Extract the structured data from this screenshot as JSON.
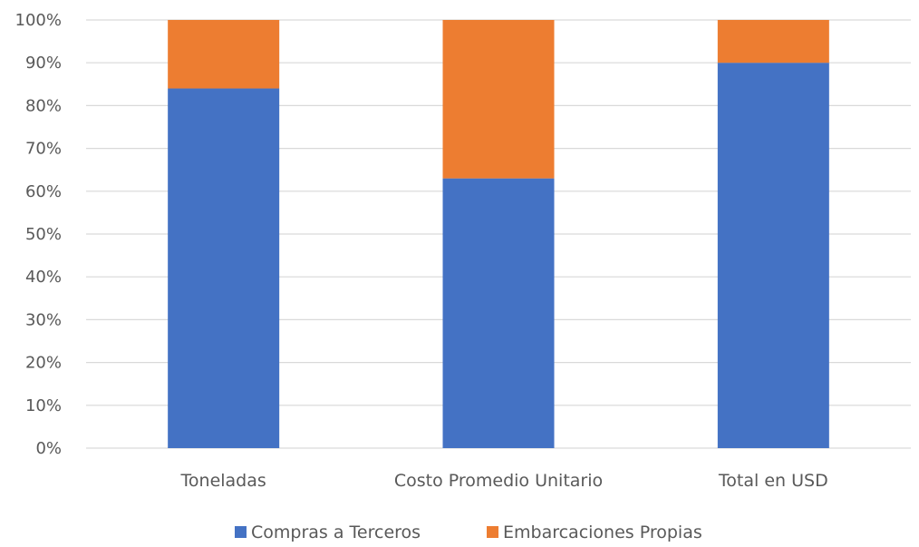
{
  "chart_data": {
    "type": "bar",
    "stacked": "percent",
    "categories": [
      "Toneladas",
      "Costo Promedio Unitario",
      "Total en USD"
    ],
    "series": [
      {
        "name": "Compras a Terceros",
        "color": "#4472C4",
        "values": [
          84,
          63,
          90
        ]
      },
      {
        "name": "Embarcaciones Propias",
        "color": "#ED7D31",
        "values": [
          16,
          37,
          10
        ]
      }
    ],
    "title": "",
    "xlabel": "",
    "ylabel": "",
    "ylim": [
      0,
      100
    ],
    "yticks": [
      0,
      10,
      20,
      30,
      40,
      50,
      60,
      70,
      80,
      90,
      100
    ],
    "ytick_suffix": "%",
    "grid": true,
    "legend_position": "bottom"
  }
}
